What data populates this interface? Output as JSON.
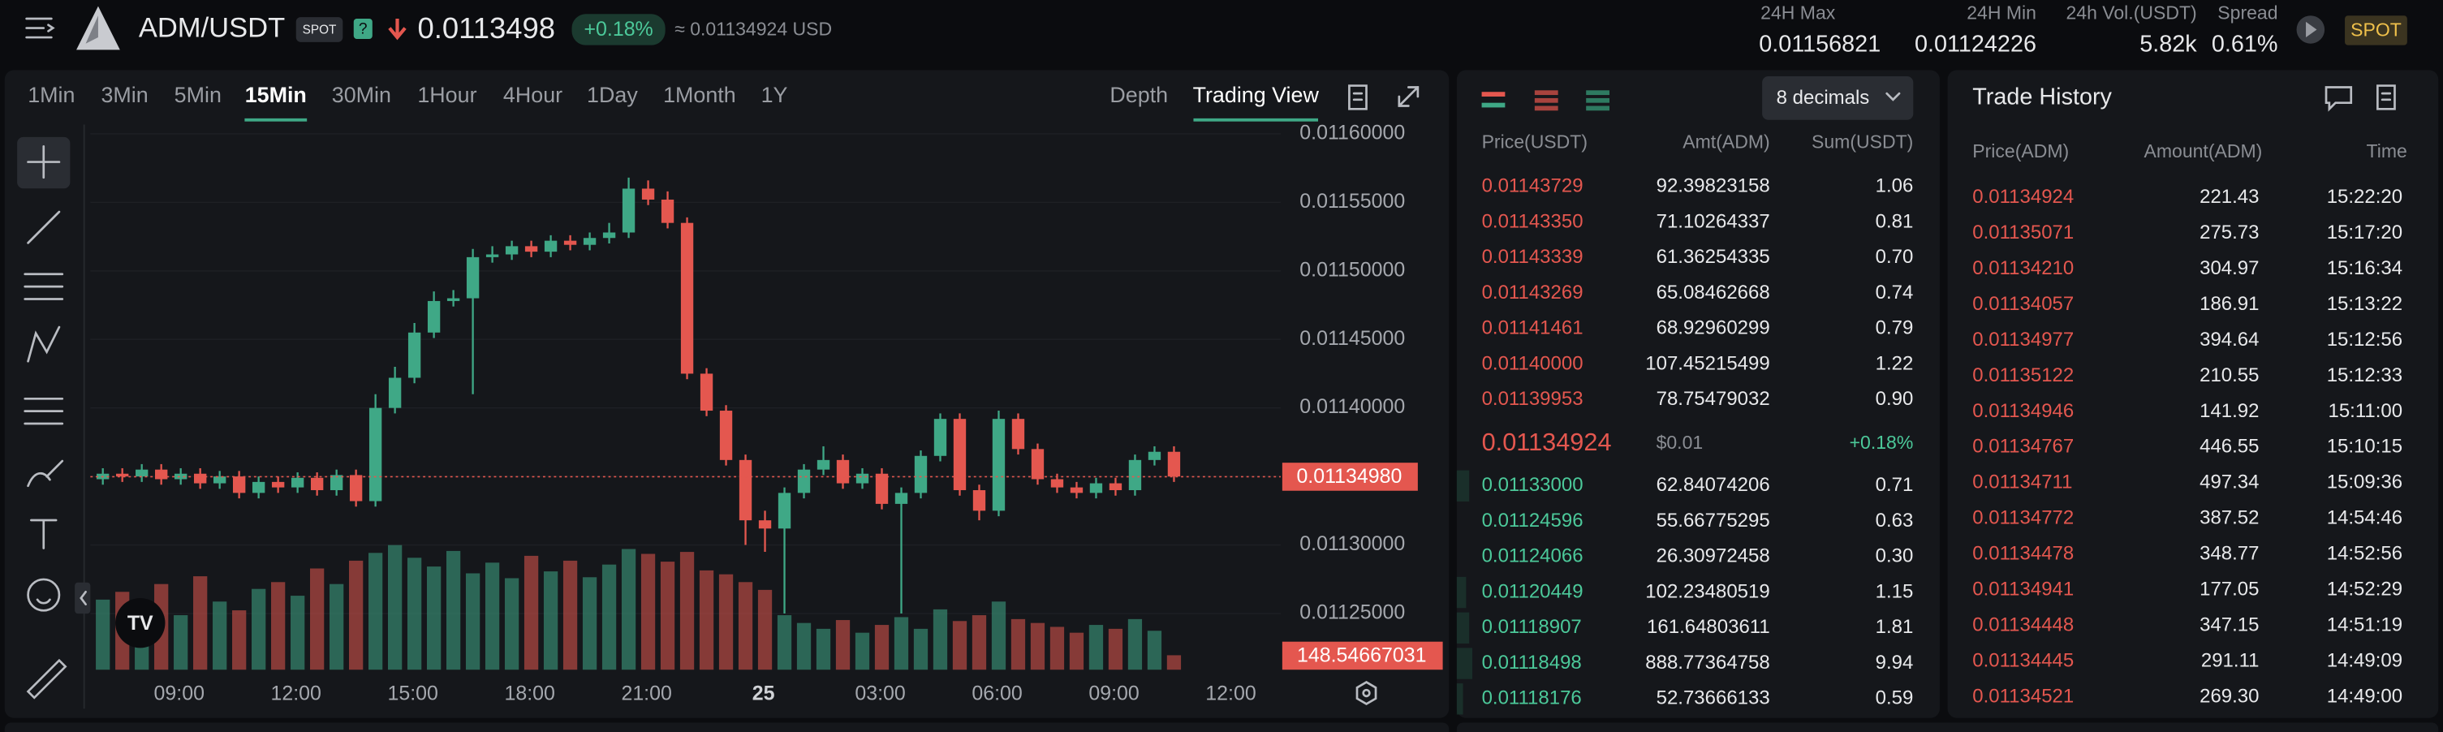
{
  "header": {
    "pair": "ADM/USDT",
    "badge": "SPOT",
    "help": "?",
    "price": "0.0113498",
    "change": "+0.18%",
    "approx": "≈ 0.01134924 USD",
    "stats": [
      {
        "label": "24H Max",
        "value": "0.01156821"
      },
      {
        "label": "24H Min",
        "value": "0.01124226"
      },
      {
        "label": "24h Vol.(USDT)",
        "value": "5.82k"
      },
      {
        "label": "Spread",
        "value": "0.61%"
      }
    ],
    "spot_button": "SPOT"
  },
  "timeframes": [
    "1Min",
    "3Min",
    "5Min",
    "15Min",
    "30Min",
    "1Hour",
    "4Hour",
    "1Day",
    "1Month",
    "1Y"
  ],
  "active_timeframe_index": 3,
  "views": [
    "Depth",
    "Trading View"
  ],
  "active_view_index": 1,
  "chart_data": {
    "type": "candlestick",
    "up_color": "#3fa886",
    "down_color": "#e4574f",
    "open": [
      0.011348,
      0.011352,
      0.01135,
      0.011355,
      0.011348,
      0.011352,
      0.011345,
      0.01135,
      0.011338,
      0.011346,
      0.011342,
      0.011349,
      0.01134,
      0.011351,
      0.011332,
      0.0114,
      0.011422,
      0.011455,
      0.011478,
      0.01148,
      0.01151,
      0.011512,
      0.011518,
      0.011514,
      0.011522,
      0.011519,
      0.011524,
      0.011528,
      0.01156,
      0.011552,
      0.011535,
      0.011425,
      0.011398,
      0.011362,
      0.011318,
      0.011312,
      0.011338,
      0.011355,
      0.011362,
      0.011345,
      0.011352,
      0.01133,
      0.011338,
      0.011365,
      0.011392,
      0.01134,
      0.011325,
      0.011392,
      0.01137,
      0.011348,
      0.011342,
      0.011338,
      0.011345,
      0.01134,
      0.011362,
      0.011368
    ],
    "high": [
      0.011356,
      0.011356,
      0.011359,
      0.011359,
      0.011356,
      0.011356,
      0.011354,
      0.011354,
      0.01135,
      0.01135,
      0.011353,
      0.011353,
      0.011355,
      0.011355,
      0.01141,
      0.01143,
      0.011462,
      0.011485,
      0.011486,
      0.011516,
      0.011518,
      0.011522,
      0.011522,
      0.011526,
      0.011526,
      0.011528,
      0.011535,
      0.011568,
      0.011566,
      0.011558,
      0.011539,
      0.011429,
      0.011402,
      0.011366,
      0.011325,
      0.011342,
      0.011359,
      0.011372,
      0.011366,
      0.011356,
      0.011356,
      0.011342,
      0.011369,
      0.011396,
      0.011396,
      0.011344,
      0.011398,
      0.011396,
      0.011374,
      0.011352,
      0.011346,
      0.011349,
      0.011349,
      0.011366,
      0.011372,
      0.011372
    ],
    "low": [
      0.011344,
      0.011346,
      0.011346,
      0.011344,
      0.011344,
      0.011341,
      0.011341,
      0.011334,
      0.011334,
      0.011338,
      0.011338,
      0.011336,
      0.011336,
      0.011328,
      0.011328,
      0.011396,
      0.011418,
      0.011451,
      0.011474,
      0.01141,
      0.011506,
      0.011508,
      0.01151,
      0.01151,
      0.011515,
      0.011515,
      0.01152,
      0.011524,
      0.011548,
      0.011531,
      0.011421,
      0.011394,
      0.011358,
      0.0113,
      0.011295,
      0.01125,
      0.011334,
      0.011351,
      0.011341,
      0.011341,
      0.011326,
      0.01125,
      0.011334,
      0.011361,
      0.011336,
      0.011318,
      0.011321,
      0.011366,
      0.011344,
      0.011338,
      0.011334,
      0.011334,
      0.011336,
      0.011336,
      0.011358,
      0.011346
    ],
    "close": [
      0.011352,
      0.01135,
      0.011355,
      0.011348,
      0.011352,
      0.011345,
      0.01135,
      0.011338,
      0.011346,
      0.011342,
      0.011349,
      0.01134,
      0.011351,
      0.011332,
      0.0114,
      0.011422,
      0.011455,
      0.011478,
      0.01148,
      0.01151,
      0.011512,
      0.011518,
      0.011514,
      0.011522,
      0.011519,
      0.011524,
      0.011528,
      0.01156,
      0.011552,
      0.011535,
      0.011425,
      0.011398,
      0.011362,
      0.011318,
      0.011312,
      0.011338,
      0.011355,
      0.011362,
      0.011345,
      0.011352,
      0.01133,
      0.011338,
      0.011365,
      0.011392,
      0.01134,
      0.011325,
      0.011392,
      0.01137,
      0.011348,
      0.011342,
      0.011338,
      0.011345,
      0.01134,
      0.011362,
      0.011368,
      0.01135
    ],
    "volume": [
      720,
      800,
      640,
      880,
      560,
      960,
      700,
      610,
      830,
      900,
      760,
      1040,
      880,
      1120,
      1200,
      1280,
      1150,
      1060,
      1220,
      990,
      1100,
      940,
      1170,
      1010,
      1120,
      950,
      1080,
      1240,
      1190,
      1110,
      1210,
      1020,
      980,
      900,
      820,
      560,
      480,
      420,
      510,
      380,
      460,
      540,
      420,
      620,
      500,
      560,
      700,
      520,
      480,
      440,
      380,
      460,
      420,
      520,
      400,
      148.54667031
    ],
    "ylim": [
      0.011209,
      0.011609
    ],
    "yticks": [
      {
        "value": 0.0116,
        "label": "0.01160000"
      },
      {
        "value": 0.01155,
        "label": "0.01155000"
      },
      {
        "value": 0.0115,
        "label": "0.01150000"
      },
      {
        "value": 0.01145,
        "label": "0.01145000"
      },
      {
        "value": 0.0114,
        "label": "0.01140000"
      },
      {
        "value": 0.01135,
        "label": "0.01135000"
      },
      {
        "value": 0.0113,
        "label": "0.01130000"
      },
      {
        "value": 0.01125,
        "label": "0.01125000"
      }
    ],
    "last_price": {
      "value": 0.0113498,
      "label": "0.01134980"
    },
    "x_labels": [
      "09:00",
      "12:00",
      "15:00",
      "18:00",
      "21:00",
      "25",
      "03:00",
      "06:00",
      "09:00",
      "12:00"
    ]
  },
  "order_book": {
    "decimals": "8 decimals",
    "columns": [
      "Price(USDT)",
      "Amt(ADM)",
      "Sum(USDT)"
    ],
    "asks": [
      [
        "0.01143729",
        "92.39823158",
        "1.06"
      ],
      [
        "0.01143350",
        "71.10264337",
        "0.81"
      ],
      [
        "0.01143339",
        "61.36254335",
        "0.70"
      ],
      [
        "0.01143269",
        "65.08462668",
        "0.74"
      ],
      [
        "0.01141461",
        "68.92960299",
        "0.79"
      ],
      [
        "0.01140000",
        "107.45215499",
        "1.22"
      ],
      [
        "0.01139953",
        "78.75479032",
        "0.90"
      ]
    ],
    "mid": {
      "price": "0.01134924",
      "usd": "$0.01",
      "change": "+0.18%"
    },
    "bids": [
      [
        "0.01133000",
        "62.84074206",
        "0.71"
      ],
      [
        "0.01124596",
        "55.66775295",
        "0.63"
      ],
      [
        "0.01124066",
        "26.30972458",
        "0.30"
      ],
      [
        "0.01120449",
        "102.23480519",
        "1.15"
      ],
      [
        "0.01118907",
        "161.64803611",
        "1.81"
      ],
      [
        "0.01118498",
        "888.77364758",
        "9.94"
      ],
      [
        "0.01118176",
        "52.73666133",
        "0.59"
      ]
    ]
  },
  "trade_history": {
    "title": "Trade History",
    "columns": [
      "Price(ADM)",
      "Amount(ADM)",
      "Time"
    ],
    "rows": [
      [
        "0.01134924",
        "221.43",
        "15:22:20"
      ],
      [
        "0.01135071",
        "275.73",
        "15:17:20"
      ],
      [
        "0.01134210",
        "304.97",
        "15:16:34"
      ],
      [
        "0.01134057",
        "186.91",
        "15:13:22"
      ],
      [
        "0.01134977",
        "394.64",
        "15:12:56"
      ],
      [
        "0.01135122",
        "210.55",
        "15:12:33"
      ],
      [
        "0.01134946",
        "141.92",
        "15:11:00"
      ],
      [
        "0.01134767",
        "446.55",
        "15:10:15"
      ],
      [
        "0.01134711",
        "497.34",
        "15:09:36"
      ],
      [
        "0.01134772",
        "387.52",
        "14:54:46"
      ],
      [
        "0.01134478",
        "348.77",
        "14:52:56"
      ],
      [
        "0.01134941",
        "177.05",
        "14:52:29"
      ],
      [
        "0.01134448",
        "347.15",
        "14:51:19"
      ],
      [
        "0.01134445",
        "291.11",
        "14:49:09"
      ],
      [
        "0.01134521",
        "269.30",
        "14:49:00"
      ]
    ]
  }
}
